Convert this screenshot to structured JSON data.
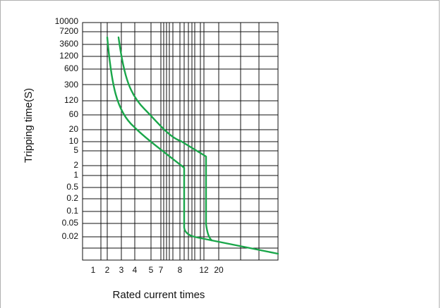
{
  "chart_data": {
    "type": "line",
    "title": "",
    "xlabel": "Rated current times",
    "ylabel": "Tripping time(S)",
    "x_tick_labels": [
      "1",
      "2",
      "3",
      "4",
      "5",
      "7",
      "8",
      "12",
      "20"
    ],
    "y_tick_labels": [
      "10000",
      "7200",
      "3600",
      "1200",
      "600",
      "300",
      "120",
      "60",
      "20",
      "10",
      "5",
      "2",
      "1",
      "0.5",
      "0.2",
      "0.1",
      "0.05",
      "0.02"
    ],
    "grid": true,
    "legend": "none",
    "line_color": "#1aa64a",
    "series": [
      {
        "values": [
          {
            "x": "2",
            "y": "7200"
          },
          {
            "x": "3",
            "y": "120"
          },
          {
            "x": "5",
            "y": "10"
          },
          {
            "x": "8",
            "y": "2"
          },
          {
            "x": "8",
            "y": "0.05"
          },
          {
            "x": "12",
            "y": "0.02"
          }
        ]
      },
      {
        "values": [
          {
            "x": "3",
            "y": "7200"
          },
          {
            "x": "5",
            "y": "120"
          },
          {
            "x": "8",
            "y": "10"
          },
          {
            "x": "12",
            "y": "2"
          },
          {
            "x": "12",
            "y": "0.05"
          },
          {
            "x": "20",
            "y": "0.02"
          }
        ]
      }
    ]
  }
}
